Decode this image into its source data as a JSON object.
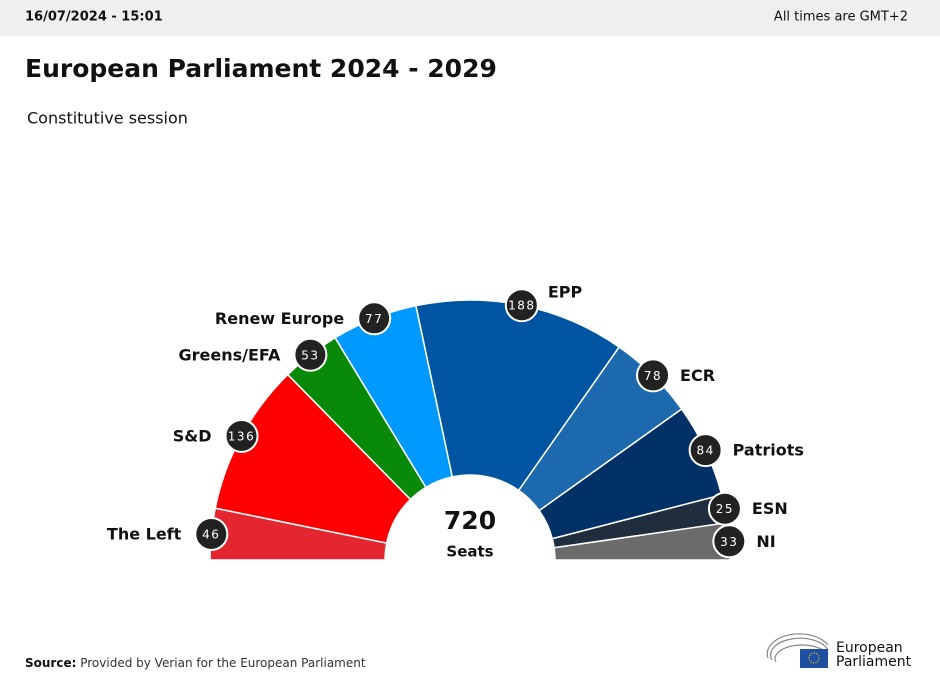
{
  "header": {
    "timestamp": "16/07/2024 - 15:01",
    "timezone": "All times are GMT+2"
  },
  "chart_data": {
    "type": "semicircle",
    "title": "European Parliament 2024 - 2029",
    "subtitle": "Constitutive session",
    "categories": [
      "The Left",
      "S&D",
      "Greens/EFA",
      "Renew Europe",
      "EPP",
      "ECR",
      "Patriots",
      "ESN",
      "NI"
    ],
    "values": [
      46,
      136,
      53,
      77,
      188,
      78,
      84,
      25,
      33
    ],
    "colors": [
      "#e3262f",
      "#ff0000",
      "#088a08",
      "#0099ff",
      "#0055a3",
      "#1c69ad",
      "#003166",
      "#1f2d3f",
      "#6b6b6b"
    ],
    "total": 720,
    "total_label": "Seats"
  },
  "source": {
    "label": "Source:",
    "text": "Provided by Verian for the European Parliament"
  },
  "logo": [
    "European",
    "Parliament"
  ]
}
